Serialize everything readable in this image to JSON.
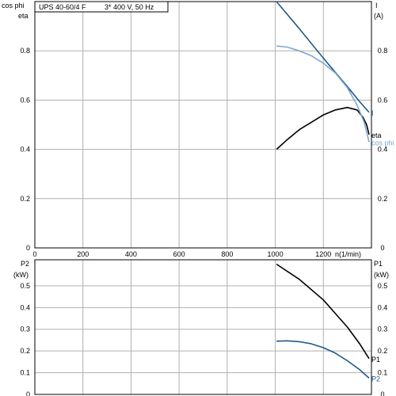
{
  "chart_data": [
    {
      "type": "line",
      "title": "UPS 40-60/4 F",
      "subtitle": "3* 400 V, 50 Hz",
      "xlabel": "n(1/min)",
      "xlim": [
        0,
        1400
      ],
      "x_ticks": [
        "0",
        "200",
        "400",
        "600",
        "800",
        "1000",
        "1200"
      ],
      "left_axis": {
        "labels": [
          "cos phi",
          "eta"
        ],
        "ylim": [
          0,
          1.0
        ],
        "ticks": [
          "0",
          "0.2",
          "0.4",
          "0.6",
          "0.8"
        ]
      },
      "right_axis": {
        "labels": [
          "I",
          "(A)"
        ],
        "ylim": [
          0,
          1.0
        ],
        "ticks": [
          "0",
          "0.2",
          "0.4",
          "0.6",
          "0.8"
        ]
      },
      "grid": true,
      "series": [
        {
          "name": "I",
          "axis": "right",
          "color": "#1f5a8c",
          "x": [
            1005,
            1100,
            1200,
            1300,
            1350,
            1390
          ],
          "y": [
            1.0,
            0.89,
            0.77,
            0.655,
            0.595,
            0.55
          ]
        },
        {
          "name": "eta",
          "axis": "left",
          "color": "#000000",
          "x": [
            1005,
            1050,
            1100,
            1150,
            1200,
            1250,
            1300,
            1340,
            1365,
            1380,
            1390
          ],
          "y": [
            0.4,
            0.44,
            0.48,
            0.51,
            0.54,
            0.56,
            0.57,
            0.56,
            0.53,
            0.5,
            0.46
          ]
        },
        {
          "name": "cos phi",
          "axis": "left",
          "color": "#7da7cf",
          "x": [
            1005,
            1050,
            1100,
            1150,
            1200,
            1250,
            1300,
            1340,
            1370,
            1390
          ],
          "y": [
            0.82,
            0.815,
            0.8,
            0.78,
            0.75,
            0.71,
            0.65,
            0.58,
            0.51,
            0.43
          ]
        }
      ]
    },
    {
      "type": "line",
      "xlabel": "",
      "xlim": [
        0,
        1400
      ],
      "left_axis": {
        "labels": [
          "P2",
          "(kW)"
        ],
        "ylim": [
          0,
          0.62
        ],
        "ticks": [
          "0",
          "0.1",
          "0.2",
          "0.3",
          "0.4",
          "0.5"
        ]
      },
      "right_axis": {
        "labels": [
          "P1",
          "(kW)"
        ],
        "ylim": [
          0,
          0.62
        ],
        "ticks": [
          "0",
          "0.1",
          "0.2",
          "0.3",
          "0.4",
          "0.5"
        ]
      },
      "grid": true,
      "series": [
        {
          "name": "P1",
          "color": "#000000",
          "x": [
            1005,
            1100,
            1200,
            1300,
            1350,
            1390
          ],
          "y": [
            0.6,
            0.53,
            0.435,
            0.31,
            0.235,
            0.165
          ]
        },
        {
          "name": "P2",
          "color": "#1f5a8c",
          "x": [
            1005,
            1050,
            1100,
            1150,
            1200,
            1250,
            1300,
            1350,
            1390
          ],
          "y": [
            0.245,
            0.247,
            0.243,
            0.233,
            0.215,
            0.19,
            0.155,
            0.115,
            0.075
          ]
        }
      ]
    }
  ]
}
